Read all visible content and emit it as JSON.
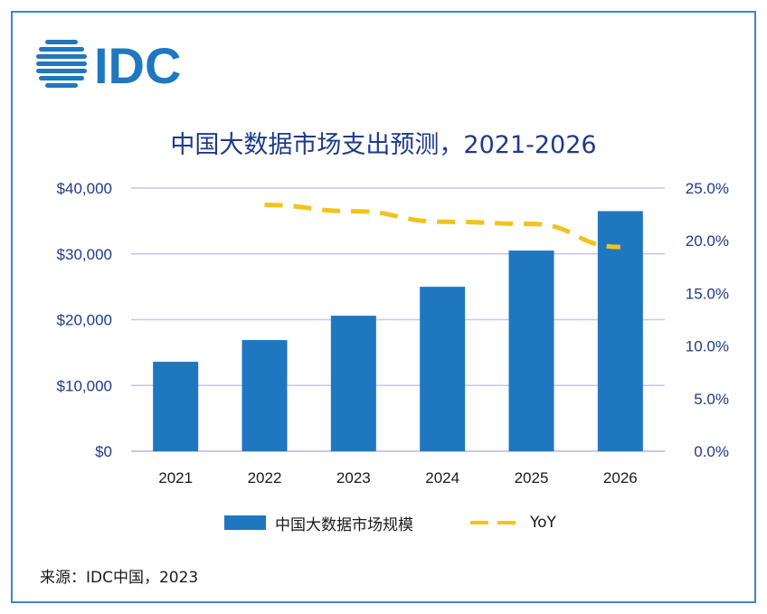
{
  "logo": {
    "text": "IDC",
    "color": "#1f77c0"
  },
  "source": "来源：IDC中国，2023",
  "chart_data": {
    "type": "bar",
    "title": "中国大数据市场支出预测，2021-2026",
    "categories": [
      "2021",
      "2022",
      "2023",
      "2024",
      "2025",
      "2026"
    ],
    "series": [
      {
        "name": "中国大数据市场规模",
        "type": "bar",
        "axis": "left",
        "color": "#1f77c0",
        "values": [
          13600,
          16900,
          20600,
          25000,
          30500,
          36500
        ]
      },
      {
        "name": "YoY",
        "type": "line",
        "axis": "right",
        "style": "dashed",
        "color": "#f2c31b",
        "values": [
          null,
          23.4,
          22.8,
          21.8,
          21.6,
          19.4
        ]
      }
    ],
    "y_left": {
      "ticks": [
        "$0",
        "$10,000",
        "$20,000",
        "$30,000",
        "$40,000"
      ],
      "ylim": [
        0,
        40000
      ]
    },
    "y_right": {
      "ticks": [
        "0.0%",
        "5.0%",
        "10.0%",
        "15.0%",
        "20.0%",
        "25.0%"
      ],
      "ylim": [
        0,
        25
      ]
    },
    "grid": true,
    "legend_position": "bottom"
  }
}
